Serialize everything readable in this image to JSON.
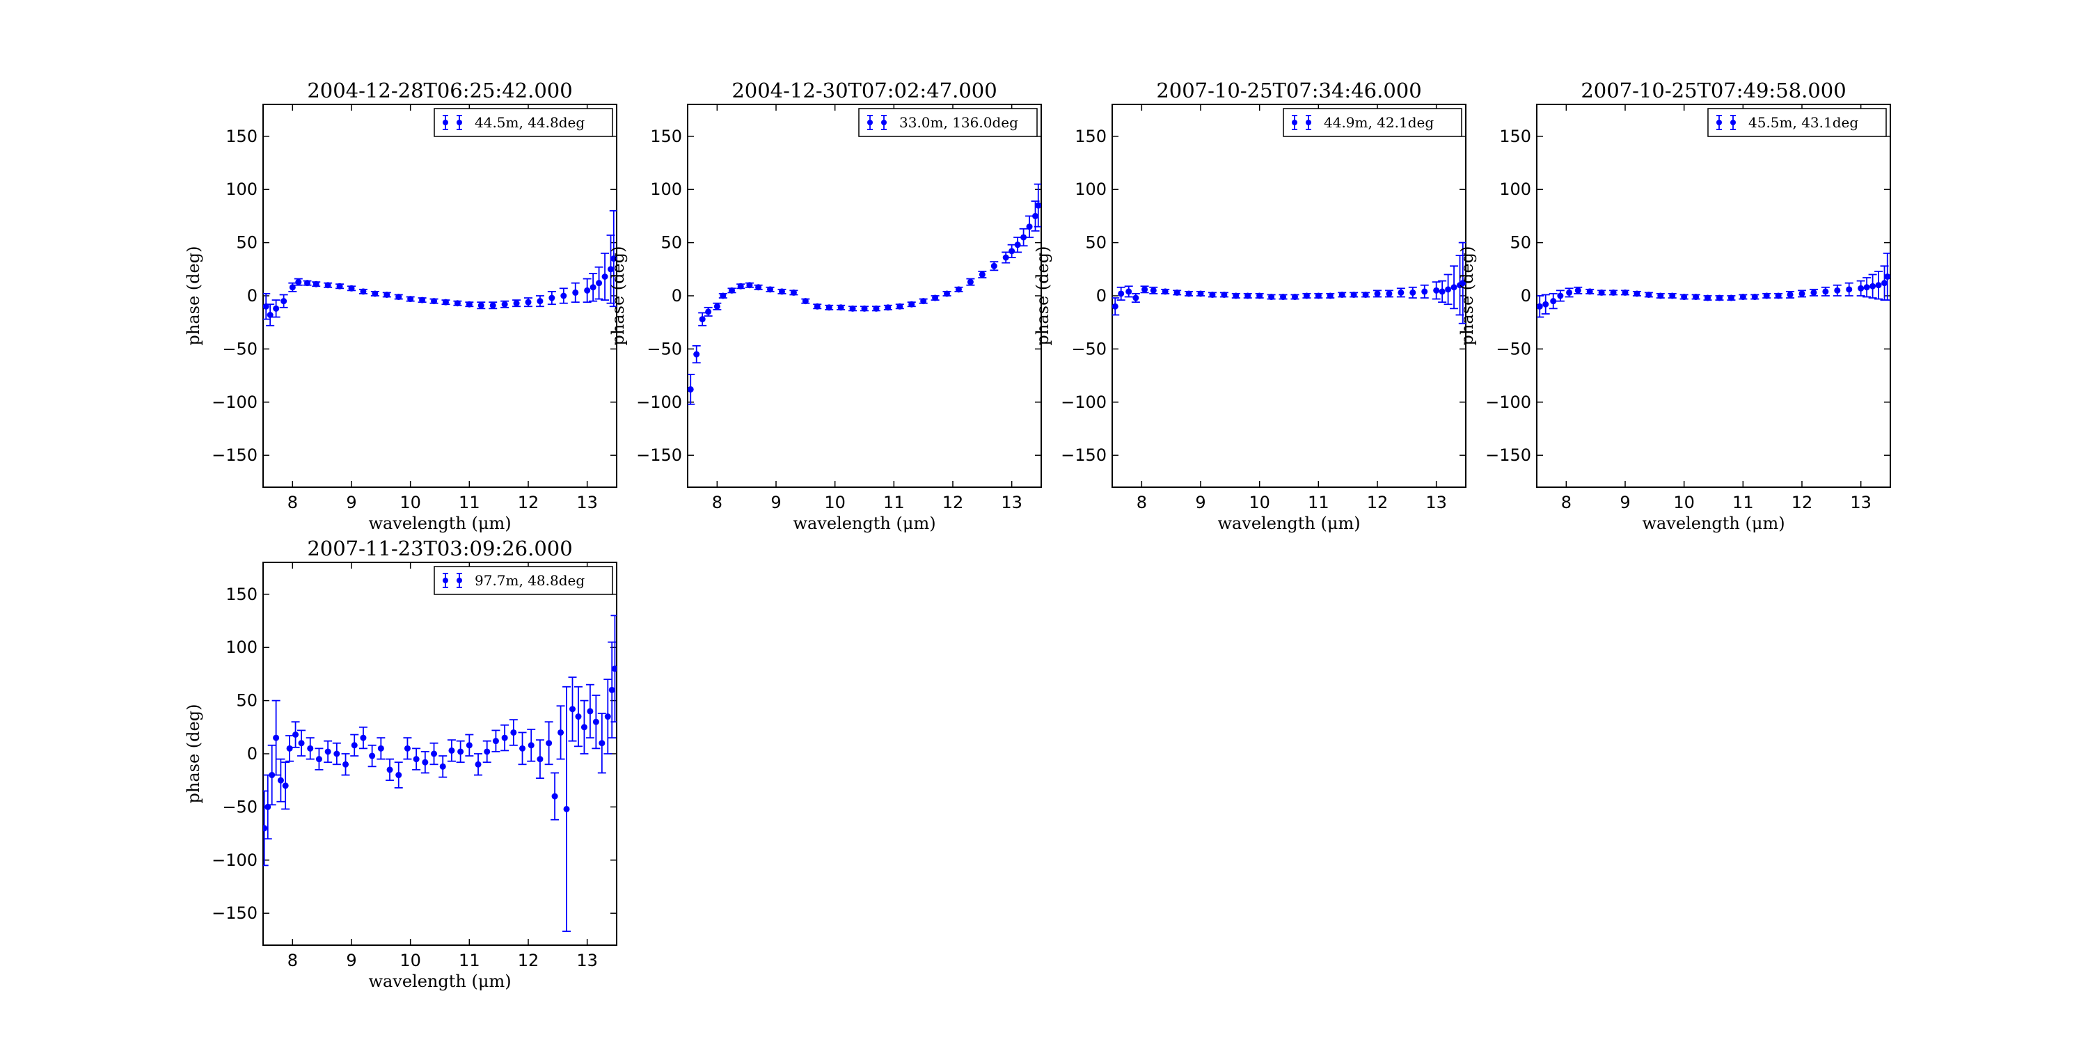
{
  "colors": {
    "series": "#0000ff",
    "axes": "#000000",
    "background": "#ffffff"
  },
  "chart_data": [
    {
      "type": "scatter",
      "title": "2004-12-28T06:25:42.000",
      "xlabel": "wavelength (μm)",
      "ylabel": "phase (deg)",
      "xlim": [
        7.5,
        13.5
      ],
      "ylim": [
        -180,
        180
      ],
      "xticks": [
        "8",
        "9",
        "10",
        "11",
        "12",
        "13"
      ],
      "yticks": [
        "-150",
        "-100",
        "-50",
        "0",
        "50",
        "100",
        "150"
      ],
      "grid": false,
      "legend_position": "top-right",
      "series": [
        {
          "name": "44.5m, 44.8deg",
          "x": [
            7.55,
            7.62,
            7.72,
            7.85,
            8.0,
            8.1,
            8.25,
            8.4,
            8.6,
            8.8,
            9.0,
            9.2,
            9.4,
            9.6,
            9.8,
            10.0,
            10.2,
            10.4,
            10.6,
            10.8,
            11.0,
            11.2,
            11.4,
            11.6,
            11.8,
            12.0,
            12.2,
            12.4,
            12.6,
            12.8,
            13.0,
            13.1,
            13.2,
            13.3,
            13.4,
            13.45
          ],
          "y": [
            -10,
            -18,
            -12,
            -5,
            8,
            13,
            12,
            11,
            10,
            9,
            7,
            4,
            2,
            1,
            -1,
            -3,
            -4,
            -5,
            -6,
            -7,
            -8,
            -9,
            -9,
            -8,
            -7,
            -6,
            -5,
            -2,
            0,
            3,
            5,
            8,
            12,
            18,
            25,
            35
          ],
          "err": [
            12,
            10,
            8,
            6,
            4,
            3,
            2,
            2,
            2,
            2,
            2,
            2,
            2,
            2,
            2,
            2,
            2,
            2,
            2,
            2,
            2,
            3,
            3,
            3,
            3,
            4,
            5,
            6,
            7,
            9,
            11,
            13,
            15,
            22,
            32,
            45
          ]
        }
      ]
    },
    {
      "type": "scatter",
      "title": "2004-12-30T07:02:47.000",
      "xlabel": "wavelength (μm)",
      "ylabel": "phase (deg)",
      "xlim": [
        7.5,
        13.5
      ],
      "ylim": [
        -180,
        180
      ],
      "xticks": [
        "8",
        "9",
        "10",
        "11",
        "12",
        "13"
      ],
      "yticks": [
        "-150",
        "-100",
        "-50",
        "0",
        "50",
        "100",
        "150"
      ],
      "grid": false,
      "legend_position": "top-right",
      "series": [
        {
          "name": "33.0m, 136.0deg",
          "x": [
            7.55,
            7.65,
            7.75,
            7.85,
            8.0,
            8.1,
            8.25,
            8.4,
            8.55,
            8.7,
            8.9,
            9.1,
            9.3,
            9.5,
            9.7,
            9.9,
            10.1,
            10.3,
            10.5,
            10.7,
            10.9,
            11.1,
            11.3,
            11.5,
            11.7,
            11.9,
            12.1,
            12.3,
            12.5,
            12.7,
            12.9,
            13.0,
            13.1,
            13.2,
            13.3,
            13.4,
            13.45
          ],
          "y": [
            -88,
            -55,
            -22,
            -15,
            -10,
            0,
            5,
            9,
            10,
            8,
            6,
            4,
            3,
            -5,
            -10,
            -11,
            -11,
            -12,
            -12,
            -12,
            -11,
            -10,
            -8,
            -5,
            -2,
            2,
            6,
            13,
            20,
            28,
            36,
            42,
            48,
            55,
            65,
            75,
            85
          ],
          "err": [
            14,
            8,
            6,
            4,
            3,
            2,
            2,
            2,
            2,
            2,
            2,
            2,
            2,
            2,
            2,
            2,
            2,
            2,
            2,
            2,
            2,
            2,
            2,
            2,
            2,
            2,
            2,
            3,
            3,
            4,
            5,
            6,
            7,
            8,
            10,
            14,
            20
          ]
        }
      ]
    },
    {
      "type": "scatter",
      "title": "2007-10-25T07:34:46.000",
      "xlabel": "wavelength (μm)",
      "ylabel": "phase (deg)",
      "xlim": [
        7.5,
        13.5
      ],
      "ylim": [
        -180,
        180
      ],
      "xticks": [
        "8",
        "9",
        "10",
        "11",
        "12",
        "13"
      ],
      "yticks": [
        "-150",
        "-100",
        "-50",
        "0",
        "50",
        "100",
        "150"
      ],
      "grid": false,
      "legend_position": "top-right",
      "series": [
        {
          "name": "44.9m, 42.1deg",
          "x": [
            7.55,
            7.65,
            7.78,
            7.9,
            8.05,
            8.2,
            8.4,
            8.6,
            8.8,
            9.0,
            9.2,
            9.4,
            9.6,
            9.8,
            10.0,
            10.2,
            10.4,
            10.6,
            10.8,
            11.0,
            11.2,
            11.4,
            11.6,
            11.8,
            12.0,
            12.2,
            12.4,
            12.6,
            12.8,
            13.0,
            13.1,
            13.2,
            13.3,
            13.4,
            13.45
          ],
          "y": [
            -10,
            2,
            4,
            -2,
            6,
            5,
            4,
            3,
            2,
            2,
            1,
            1,
            0,
            0,
            0,
            -1,
            -1,
            -1,
            0,
            0,
            0,
            1,
            1,
            1,
            2,
            2,
            3,
            3,
            4,
            5,
            4,
            6,
            8,
            10,
            12
          ],
          "err": [
            8,
            6,
            5,
            4,
            3,
            3,
            2,
            2,
            2,
            2,
            2,
            2,
            2,
            2,
            2,
            2,
            2,
            2,
            2,
            2,
            2,
            2,
            2,
            2,
            3,
            3,
            4,
            5,
            6,
            8,
            10,
            14,
            20,
            28,
            38
          ]
        }
      ]
    },
    {
      "type": "scatter",
      "title": "2007-10-25T07:49:58.000",
      "xlabel": "wavelength (μm)",
      "ylabel": "phase (deg)",
      "xlim": [
        7.5,
        13.5
      ],
      "ylim": [
        -180,
        180
      ],
      "xticks": [
        "8",
        "9",
        "10",
        "11",
        "12",
        "13"
      ],
      "yticks": [
        "-150",
        "-100",
        "-50",
        "0",
        "50",
        "100",
        "150"
      ],
      "grid": false,
      "legend_position": "top-right",
      "series": [
        {
          "name": "45.5m, 43.1deg",
          "x": [
            7.55,
            7.65,
            7.78,
            7.9,
            8.05,
            8.2,
            8.4,
            8.6,
            8.8,
            9.0,
            9.2,
            9.4,
            9.6,
            9.8,
            10.0,
            10.2,
            10.4,
            10.6,
            10.8,
            11.0,
            11.2,
            11.4,
            11.6,
            11.8,
            12.0,
            12.2,
            12.4,
            12.6,
            12.8,
            13.0,
            13.1,
            13.2,
            13.3,
            13.4,
            13.45
          ],
          "y": [
            -10,
            -8,
            -5,
            0,
            3,
            5,
            4,
            3,
            3,
            3,
            2,
            1,
            0,
            0,
            -1,
            -1,
            -2,
            -2,
            -2,
            -1,
            -1,
            0,
            0,
            1,
            2,
            3,
            4,
            5,
            6,
            7,
            8,
            9,
            10,
            12,
            18
          ],
          "err": [
            10,
            9,
            7,
            5,
            4,
            3,
            2,
            2,
            2,
            2,
            2,
            2,
            2,
            2,
            2,
            2,
            2,
            2,
            2,
            2,
            2,
            2,
            2,
            3,
            3,
            3,
            4,
            5,
            6,
            7,
            9,
            11,
            13,
            16,
            22
          ]
        }
      ]
    },
    {
      "type": "scatter",
      "title": "2007-11-23T03:09:26.000",
      "xlabel": "wavelength (μm)",
      "ylabel": "phase (deg)",
      "xlim": [
        7.5,
        13.5
      ],
      "ylim": [
        -180,
        180
      ],
      "xticks": [
        "8",
        "9",
        "10",
        "11",
        "12",
        "13"
      ],
      "yticks": [
        "-150",
        "-100",
        "-50",
        "0",
        "50",
        "100",
        "150"
      ],
      "grid": false,
      "legend_position": "top-right",
      "series": [
        {
          "name": "97.7m, 48.8deg",
          "x": [
            7.52,
            7.58,
            7.65,
            7.72,
            7.8,
            7.88,
            7.95,
            8.05,
            8.15,
            8.3,
            8.45,
            8.6,
            8.75,
            8.9,
            9.05,
            9.2,
            9.35,
            9.5,
            9.65,
            9.8,
            9.95,
            10.1,
            10.25,
            10.4,
            10.55,
            10.7,
            10.85,
            11.0,
            11.15,
            11.3,
            11.45,
            11.6,
            11.75,
            11.9,
            12.05,
            12.2,
            12.35,
            12.45,
            12.55,
            12.65,
            12.75,
            12.85,
            12.95,
            13.05,
            13.15,
            13.25,
            13.35,
            13.42,
            13.47
          ],
          "y": [
            -70,
            -50,
            -20,
            15,
            -25,
            -30,
            5,
            18,
            10,
            5,
            -5,
            2,
            0,
            -10,
            8,
            15,
            -2,
            5,
            -15,
            -20,
            5,
            -5,
            -8,
            0,
            -12,
            3,
            2,
            8,
            -10,
            2,
            12,
            15,
            20,
            5,
            8,
            -5,
            10,
            -40,
            20,
            -52,
            42,
            35,
            25,
            40,
            30,
            10,
            35,
            60,
            80
          ],
          "err": [
            35,
            30,
            28,
            35,
            20,
            22,
            12,
            12,
            12,
            10,
            10,
            10,
            10,
            10,
            10,
            10,
            10,
            10,
            10,
            12,
            10,
            10,
            10,
            10,
            10,
            10,
            10,
            10,
            10,
            10,
            10,
            12,
            12,
            15,
            15,
            18,
            20,
            22,
            25,
            115,
            30,
            28,
            25,
            25,
            25,
            28,
            35,
            45,
            50
          ]
        }
      ]
    }
  ]
}
